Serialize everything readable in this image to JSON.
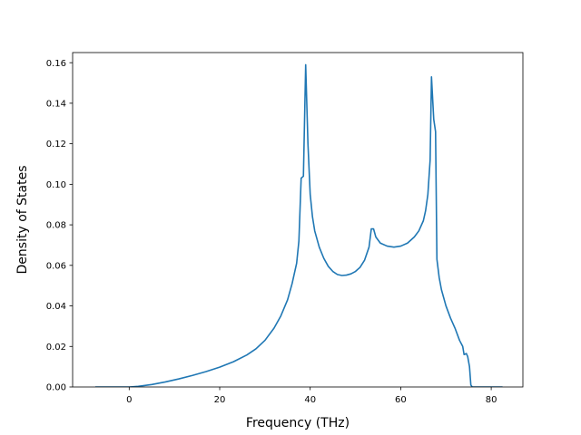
{
  "chart_data": {
    "type": "line",
    "title": "",
    "xlabel": "Frequency (THz)",
    "ylabel": "Density of States",
    "xlim": [
      -12.5,
      87
    ],
    "ylim": [
      0,
      0.165
    ],
    "grid": false,
    "legend": "none",
    "x_ticks": [
      0,
      20,
      40,
      60,
      80
    ],
    "x_tick_labels": [
      "0",
      "20",
      "40",
      "60",
      "80"
    ],
    "y_ticks": [
      0.0,
      0.02,
      0.04,
      0.06,
      0.08,
      0.1,
      0.12,
      0.14,
      0.16
    ],
    "y_tick_labels": [
      "0.00",
      "0.02",
      "0.04",
      "0.06",
      "0.08",
      "0.10",
      "0.12",
      "0.14",
      "0.16"
    ],
    "series": [
      {
        "color": "#1f77b4",
        "points": [
          [
            -7.5,
            0.0
          ],
          [
            0.0,
            0.0
          ],
          [
            2.0,
            0.0003
          ],
          [
            5.0,
            0.0012
          ],
          [
            8.0,
            0.0025
          ],
          [
            11.0,
            0.004
          ],
          [
            14.0,
            0.0057
          ],
          [
            17.0,
            0.0076
          ],
          [
            20.0,
            0.0098
          ],
          [
            23.0,
            0.0124
          ],
          [
            26.0,
            0.0158
          ],
          [
            28.0,
            0.0188
          ],
          [
            30.0,
            0.023
          ],
          [
            32.0,
            0.029
          ],
          [
            33.5,
            0.035
          ],
          [
            35.0,
            0.043
          ],
          [
            36.0,
            0.051
          ],
          [
            37.0,
            0.061
          ],
          [
            37.5,
            0.072
          ],
          [
            38.0,
            0.103
          ],
          [
            38.5,
            0.104
          ],
          [
            39.0,
            0.159
          ],
          [
            39.5,
            0.12
          ],
          [
            40.0,
            0.095
          ],
          [
            40.5,
            0.084
          ],
          [
            41.0,
            0.077
          ],
          [
            42.0,
            0.069
          ],
          [
            43.0,
            0.0635
          ],
          [
            44.0,
            0.0595
          ],
          [
            45.0,
            0.057
          ],
          [
            46.0,
            0.0555
          ],
          [
            47.0,
            0.055
          ],
          [
            48.0,
            0.0552
          ],
          [
            49.0,
            0.0558
          ],
          [
            50.0,
            0.057
          ],
          [
            51.0,
            0.059
          ],
          [
            52.0,
            0.0625
          ],
          [
            53.0,
            0.069
          ],
          [
            53.5,
            0.078
          ],
          [
            54.0,
            0.078
          ],
          [
            54.5,
            0.074
          ],
          [
            55.5,
            0.071
          ],
          [
            57.0,
            0.0695
          ],
          [
            58.5,
            0.069
          ],
          [
            60.0,
            0.0695
          ],
          [
            61.5,
            0.071
          ],
          [
            63.0,
            0.074
          ],
          [
            64.0,
            0.077
          ],
          [
            65.0,
            0.082
          ],
          [
            65.5,
            0.087
          ],
          [
            66.0,
            0.095
          ],
          [
            66.5,
            0.112
          ],
          [
            66.8,
            0.153
          ],
          [
            67.3,
            0.132
          ],
          [
            67.7,
            0.126
          ],
          [
            68.0,
            0.063
          ],
          [
            68.5,
            0.054
          ],
          [
            69.0,
            0.048
          ],
          [
            70.0,
            0.04
          ],
          [
            71.0,
            0.034
          ],
          [
            72.0,
            0.029
          ],
          [
            73.0,
            0.023
          ],
          [
            73.7,
            0.02
          ],
          [
            74.0,
            0.016
          ],
          [
            74.5,
            0.0165
          ],
          [
            74.8,
            0.015
          ],
          [
            75.2,
            0.01
          ],
          [
            75.5,
            0.001
          ],
          [
            75.8,
            0.0
          ],
          [
            82.5,
            0.0
          ]
        ]
      }
    ]
  }
}
